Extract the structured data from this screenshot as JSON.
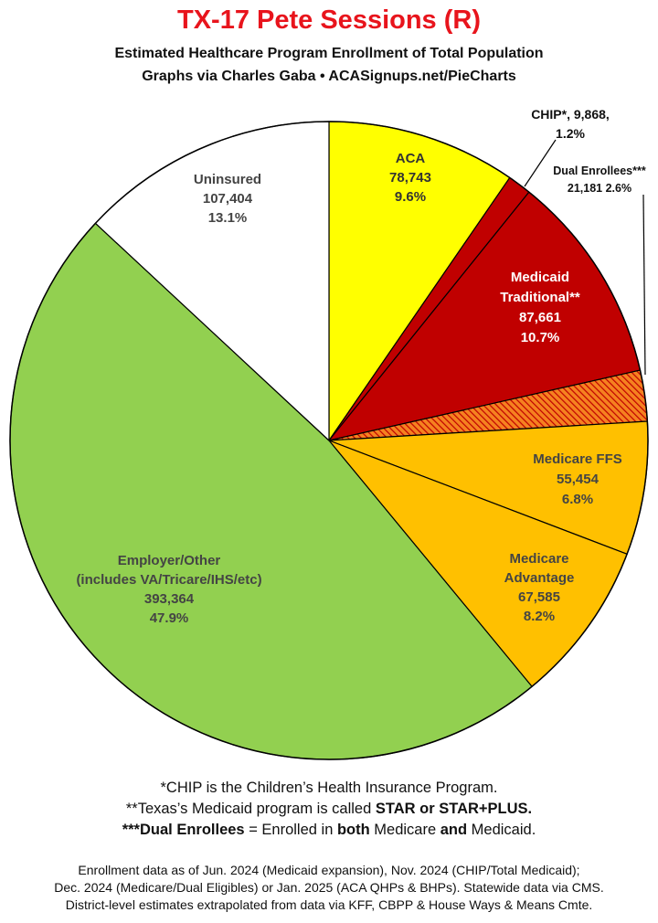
{
  "title": "TX-17 Pete Sessions (R)",
  "subtitle_line1": "Estimated Healthcare Program Enrollment of Total Population",
  "subtitle_line2": "Graphs via Charles Gaba  •  ACASignups.net/PieCharts",
  "chart_data": {
    "type": "pie",
    "slices": [
      {
        "key": "aca",
        "label_lines": [
          "ACA",
          "78,743",
          "9.6%"
        ],
        "value": 78743,
        "percent": 9.6,
        "color": "#ffff00"
      },
      {
        "key": "chip",
        "label_lines": [
          "CHIP*, 9,868,",
          "1.2%"
        ],
        "value": 9868,
        "percent": 1.2,
        "color": "#c00000"
      },
      {
        "key": "medicaid",
        "label_lines": [
          "Medicaid",
          "Traditional**",
          "87,661",
          "10.7%"
        ],
        "value": 87661,
        "percent": 10.7,
        "color": "#c00000"
      },
      {
        "key": "dual",
        "label_lines": [
          "Dual Enrollees***",
          "21,181 2.6%"
        ],
        "value": 21181,
        "percent": 2.6,
        "color": "#f08020"
      },
      {
        "key": "medicare_ffs",
        "label_lines": [
          "Medicare FFS",
          "55,454",
          "6.8%"
        ],
        "value": 55454,
        "percent": 6.8,
        "color": "#ffc000"
      },
      {
        "key": "medicare_adv",
        "label_lines": [
          "Medicare",
          "Advantage",
          "67,585",
          "8.2%"
        ],
        "value": 67585,
        "percent": 8.2,
        "color": "#ffc000"
      },
      {
        "key": "employer",
        "label_lines": [
          "Employer/Other",
          "(includes VA/Tricare/IHS/etc)",
          "393,364",
          "47.9%"
        ],
        "value": 393364,
        "percent": 47.9,
        "color": "#92d050"
      },
      {
        "key": "uninsured",
        "label_lines": [
          "Uninsured",
          "107,404",
          "13.1%"
        ],
        "value": 107404,
        "percent": 13.1,
        "color": "#ffffff"
      }
    ]
  },
  "notes": {
    "line1": "*CHIP is the Children’s Health Insurance Program.",
    "line2_pre": "**Texas’s Medicaid program is called ",
    "line2_bold": "STAR or STAR+PLUS.",
    "line3_b1": "***Dual Enrollees",
    "line3_t1": " = Enrolled in ",
    "line3_b2": "both",
    "line3_t2": " Medicare ",
    "line3_b3": "and",
    "line3_t3": " Medicaid."
  },
  "source": {
    "line1": "Enrollment data as of Jun. 2024 (Medicaid expansion), Nov. 2024 (CHIP/Total Medicaid);",
    "line2": "Dec. 2024 (Medicare/Dual Eligibles) or Jan. 2025 (ACA QHPs & BHPs). Statewide data via CMS.",
    "line3": "District-level estimates extrapolated from data via KFF, CBPP & House Ways & Means Cmte."
  }
}
